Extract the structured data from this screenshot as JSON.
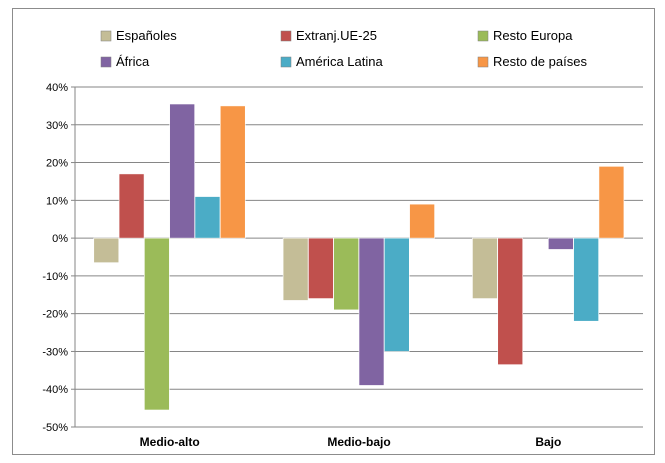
{
  "chart_data": {
    "type": "bar",
    "categories": [
      "Medio-alto",
      "Medio-bajo",
      "Bajo"
    ],
    "series": [
      {
        "name": "Españoles",
        "color": "#c4bd97",
        "values": [
          -6.5,
          -16.5,
          -16
        ]
      },
      {
        "name": "Extranj.UE-25",
        "color": "#c0504d",
        "values": [
          17,
          -16,
          -33.5
        ]
      },
      {
        "name": "Resto Europa",
        "color": "#9bbb59",
        "values": [
          -45.5,
          -19,
          0
        ]
      },
      {
        "name": "África",
        "color": "#8064a2",
        "values": [
          35.5,
          -39,
          -3
        ]
      },
      {
        "name": "América Latina",
        "color": "#4bacc6",
        "values": [
          11,
          -30,
          -22
        ]
      },
      {
        "name": "Resto de países",
        "color": "#f79646",
        "values": [
          35,
          9,
          19
        ]
      }
    ],
    "ylim": [
      -50,
      40
    ],
    "yticks": [
      40,
      30,
      20,
      10,
      0,
      -10,
      -20,
      -30,
      -40,
      -50
    ],
    "ytick_labels": [
      "40%",
      "30%",
      "20%",
      "10%",
      "0%",
      "-10%",
      "-20%",
      "-30%",
      "-40%",
      "-50%"
    ],
    "grid": true,
    "legend_position": "top",
    "title": "",
    "xlabel": "",
    "ylabel": ""
  }
}
